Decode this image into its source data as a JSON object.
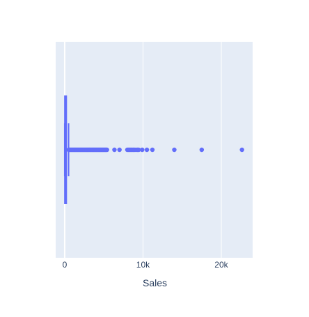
{
  "chart_data": {
    "type": "box",
    "orientation": "horizontal",
    "title": "",
    "xlabel": "Sales",
    "ylabel": "",
    "xlim": [
      -1150,
      24000
    ],
    "grid": true,
    "x_ticks": [
      {
        "value": 0,
        "label": "0"
      },
      {
        "value": 10000,
        "label": "10k"
      },
      {
        "value": 20000,
        "label": "20k"
      }
    ],
    "box": {
      "q1": 17.25,
      "median": 54.49,
      "q3": 209.94,
      "lower_fence": 0.44,
      "upper_fence": 498.93
    },
    "outliers": [
      520,
      600,
      700,
      800,
      900,
      1000,
      1100,
      1200,
      1300,
      1400,
      1500,
      1600,
      1700,
      1800,
      1900,
      2000,
      2100,
      2200,
      2300,
      2400,
      2500,
      2600,
      2700,
      2800,
      2900,
      3000,
      3100,
      3200,
      3300,
      3400,
      3500,
      3600,
      3700,
      3800,
      3900,
      4000,
      4100,
      4200,
      4300,
      4400,
      4500,
      4600,
      4700,
      4800,
      4900,
      5000,
      5100,
      5200,
      5300,
      5400,
      6354,
      6999,
      8000,
      8160,
      8300,
      8450,
      8600,
      8750,
      8900,
      9100,
      9300,
      9450,
      9900,
      10500,
      11200,
      13999.96,
      17499.95,
      22638.48
    ],
    "colors": {
      "box": "#636efa",
      "plot_bg": "#e5ecf6",
      "grid": "#ffffff",
      "text": "#2a3f5f"
    }
  }
}
